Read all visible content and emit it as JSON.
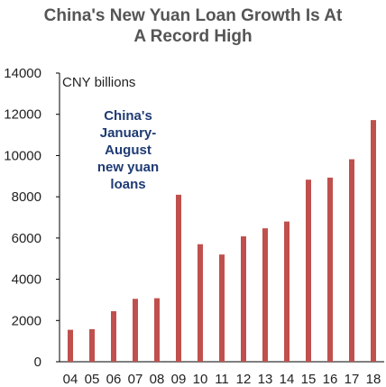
{
  "chart_data": {
    "type": "bar",
    "title_lines": [
      "China's New Yuan Loan Growth Is At",
      "A Record High"
    ],
    "unit_label": "CNY billions",
    "annotation_lines": [
      "China's",
      "January-",
      "August",
      "new yuan",
      "loans"
    ],
    "categories": [
      "04",
      "05",
      "06",
      "07",
      "08",
      "09",
      "10",
      "11",
      "12",
      "13",
      "14",
      "15",
      "16",
      "17",
      "18"
    ],
    "values": [
      1550,
      1580,
      2450,
      3050,
      3080,
      8100,
      5700,
      5200,
      6080,
      6470,
      6800,
      8830,
      8930,
      9820,
      11720
    ],
    "ylim": [
      0,
      14000
    ],
    "yticks": [
      "0",
      "2000",
      "4000",
      "6000",
      "8000",
      "10000",
      "12000",
      "14000"
    ],
    "bar_color": "#c0504d",
    "grid": false
  }
}
